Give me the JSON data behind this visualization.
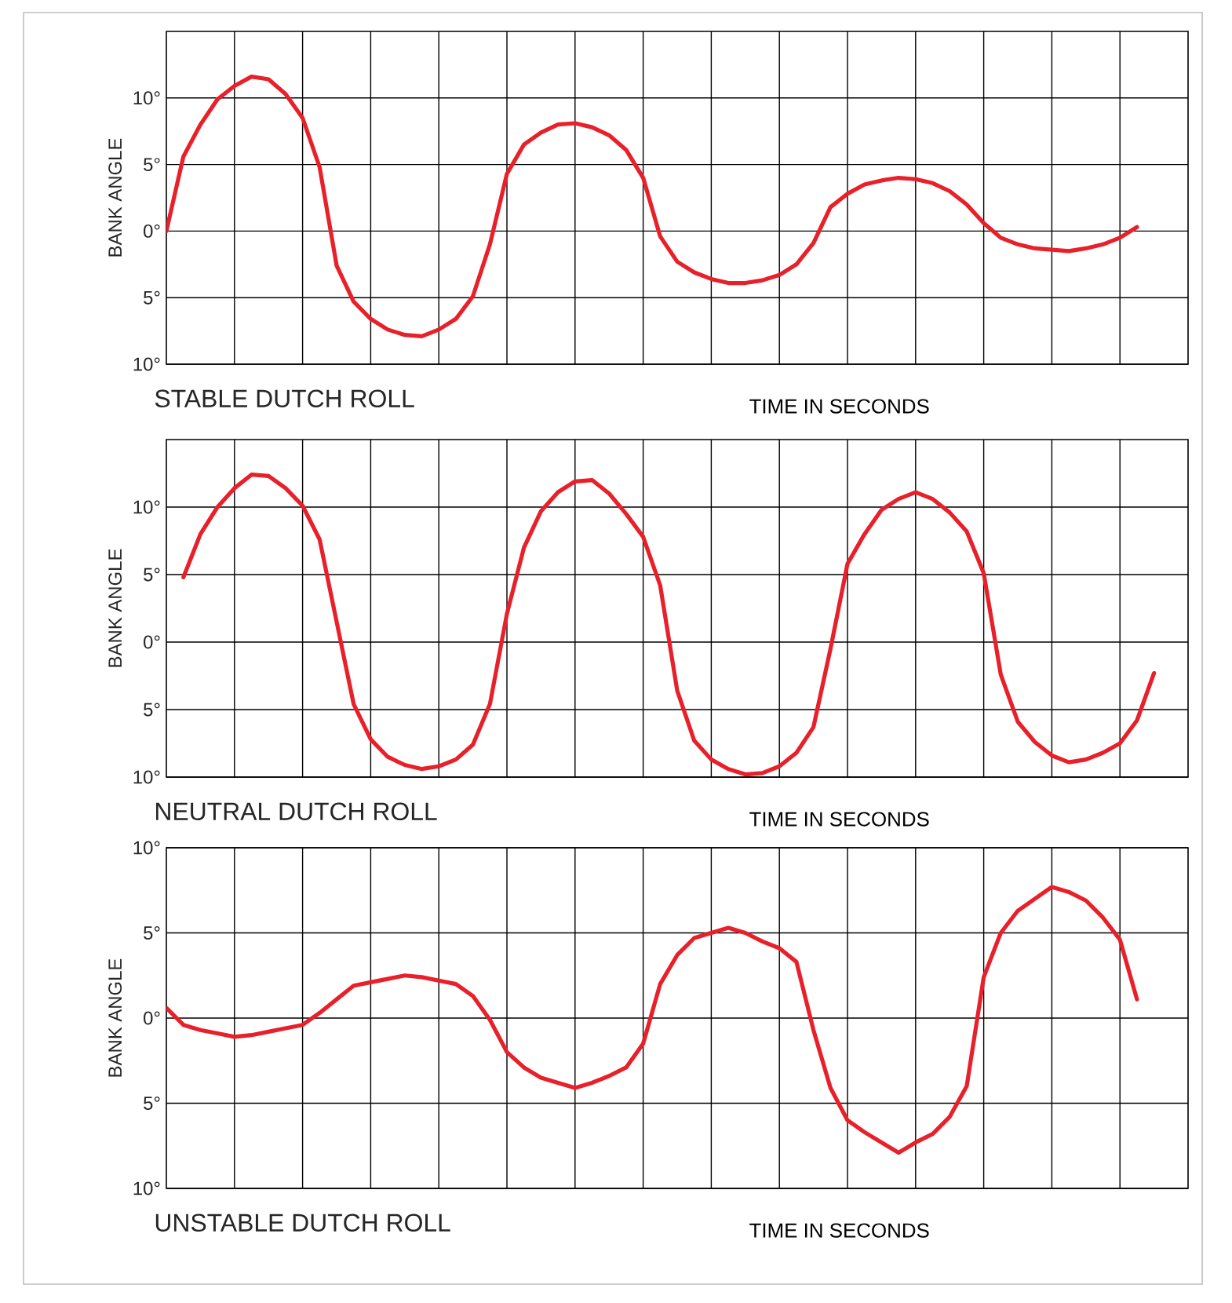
{
  "chart_data": [
    {
      "type": "line",
      "title": "STABLE DUTCH ROLL",
      "xlabel": "TIME IN SECONDS",
      "ylabel": "BANK ANGLE",
      "color": "#e8202a",
      "categories": [
        null,
        null,
        null,
        null,
        null,
        null,
        null,
        null,
        null,
        null,
        null,
        null,
        null,
        null,
        null,
        null,
        null,
        null,
        null,
        null,
        null,
        null,
        null,
        null,
        null,
        null,
        null,
        null,
        null,
        null,
        null,
        null,
        null,
        null,
        null,
        null,
        null,
        null,
        null,
        null,
        null,
        null,
        null,
        null,
        null,
        null,
        null,
        null,
        null,
        null,
        null,
        null,
        null,
        null,
        null,
        null,
        null,
        null,
        null,
        null,
        null
      ],
      "values": [
        0,
        5.6,
        8.0,
        9.9,
        10.9,
        11.6,
        11.4,
        10.3,
        8.5,
        4.8,
        -2.6,
        -5.3,
        -6.6,
        -7.4,
        -7.8,
        -7.9,
        -7.4,
        -6.6,
        -4.9,
        -1.0,
        4.3,
        6.5,
        7.4,
        8.0,
        8.1,
        7.8,
        7.2,
        6.1,
        4.0,
        -0.4,
        -2.3,
        -3.1,
        -3.6,
        -3.9,
        -3.9,
        -3.7,
        -3.3,
        -2.5,
        -0.9,
        1.8,
        2.8,
        3.5,
        3.8,
        4.0,
        3.9,
        3.6,
        3.0,
        2.0,
        0.6,
        -0.5,
        -1.0,
        -1.3,
        -1.4,
        -1.5,
        -1.3,
        -1.0,
        -0.5,
        0.3,
        null,
        null,
        null
      ],
      "ylim": [
        -10,
        15
      ],
      "yticks": [
        {
          "value": -10,
          "label": "10°"
        },
        {
          "value": -5,
          "label": "5°"
        },
        {
          "value": 0,
          "label": "0°"
        },
        {
          "value": 5,
          "label": "5°"
        },
        {
          "value": 10,
          "label": "10°"
        }
      ],
      "grid": true
    },
    {
      "type": "line",
      "title": "NEUTRAL DUTCH ROLL",
      "xlabel": "TIME IN SECONDS",
      "ylabel": "BANK ANGLE",
      "color": "#e8202a",
      "categories": [
        null,
        null,
        null,
        null,
        null,
        null,
        null,
        null,
        null,
        null,
        null,
        null,
        null,
        null,
        null,
        null,
        null,
        null,
        null,
        null,
        null,
        null,
        null,
        null,
        null,
        null,
        null,
        null,
        null,
        null,
        null,
        null,
        null,
        null,
        null,
        null,
        null,
        null,
        null,
        null,
        null,
        null,
        null,
        null,
        null,
        null,
        null,
        null,
        null,
        null,
        null,
        null,
        null,
        null,
        null,
        null,
        null,
        null,
        null,
        null,
        null
      ],
      "values": [
        null,
        4.8,
        8.0,
        10.0,
        11.4,
        12.4,
        12.3,
        11.4,
        10.1,
        7.6,
        1.5,
        -4.6,
        -7.2,
        -8.5,
        -9.1,
        -9.4,
        -9.2,
        -8.7,
        -7.6,
        -4.6,
        2.1,
        7.0,
        9.7,
        11.1,
        11.9,
        12.0,
        11.0,
        9.5,
        7.8,
        4.2,
        -3.6,
        -7.3,
        -8.7,
        -9.4,
        -9.8,
        -9.7,
        -9.2,
        -8.2,
        -6.3,
        -0.5,
        5.8,
        8.0,
        9.8,
        10.6,
        11.1,
        10.6,
        9.6,
        8.2,
        5.1,
        -2.4,
        -5.9,
        -7.4,
        -8.4,
        -8.9,
        -8.7,
        -8.2,
        -7.5,
        -5.8,
        -2.3,
        null,
        null
      ],
      "ylim": [
        -10,
        15
      ],
      "yticks": [
        {
          "value": -10,
          "label": "10°"
        },
        {
          "value": -5,
          "label": "5°"
        },
        {
          "value": 0,
          "label": "0°"
        },
        {
          "value": 5,
          "label": "5°"
        },
        {
          "value": 10,
          "label": "10°"
        }
      ],
      "grid": true
    },
    {
      "type": "line",
      "title": "UNSTABLE DUTCH ROLL",
      "xlabel": "TIME IN SECONDS",
      "ylabel": "BANK ANGLE",
      "color": "#e8202a",
      "categories": [
        null,
        null,
        null,
        null,
        null,
        null,
        null,
        null,
        null,
        null,
        null,
        null,
        null,
        null,
        null,
        null,
        null,
        null,
        null,
        null,
        null,
        null,
        null,
        null,
        null,
        null,
        null,
        null,
        null,
        null,
        null,
        null,
        null,
        null,
        null,
        null,
        null,
        null,
        null,
        null,
        null,
        null,
        null,
        null,
        null,
        null,
        null,
        null,
        null,
        null,
        null,
        null,
        null,
        null,
        null,
        null,
        null,
        null,
        null,
        null,
        null
      ],
      "values": [
        0.6,
        -0.4,
        -0.7,
        -0.9,
        -1.1,
        -1.0,
        -0.8,
        -0.6,
        -0.4,
        0.3,
        1.1,
        1.9,
        2.1,
        2.3,
        2.5,
        2.4,
        2.2,
        2.0,
        1.3,
        -0.1,
        -2.0,
        -2.9,
        -3.5,
        -3.8,
        -4.1,
        -3.8,
        -3.4,
        -2.9,
        -1.5,
        2.0,
        3.7,
        4.7,
        5.0,
        5.3,
        5.0,
        4.5,
        4.1,
        3.3,
        -0.7,
        -4.1,
        -6.0,
        -6.7,
        -7.3,
        -7.9,
        -7.3,
        -6.8,
        -5.8,
        -4.0,
        2.4,
        5.0,
        6.3,
        7.0,
        7.7,
        7.4,
        6.9,
        5.9,
        4.6,
        1.1,
        null,
        null,
        null
      ],
      "ylim": [
        -10,
        10
      ],
      "yticks": [
        {
          "value": -10,
          "label": "10°"
        },
        {
          "value": -5,
          "label": "5°"
        },
        {
          "value": 0,
          "label": "0°"
        },
        {
          "value": 5,
          "label": "5°"
        },
        {
          "value": 10,
          "label": "10°"
        }
      ],
      "grid": true
    }
  ]
}
